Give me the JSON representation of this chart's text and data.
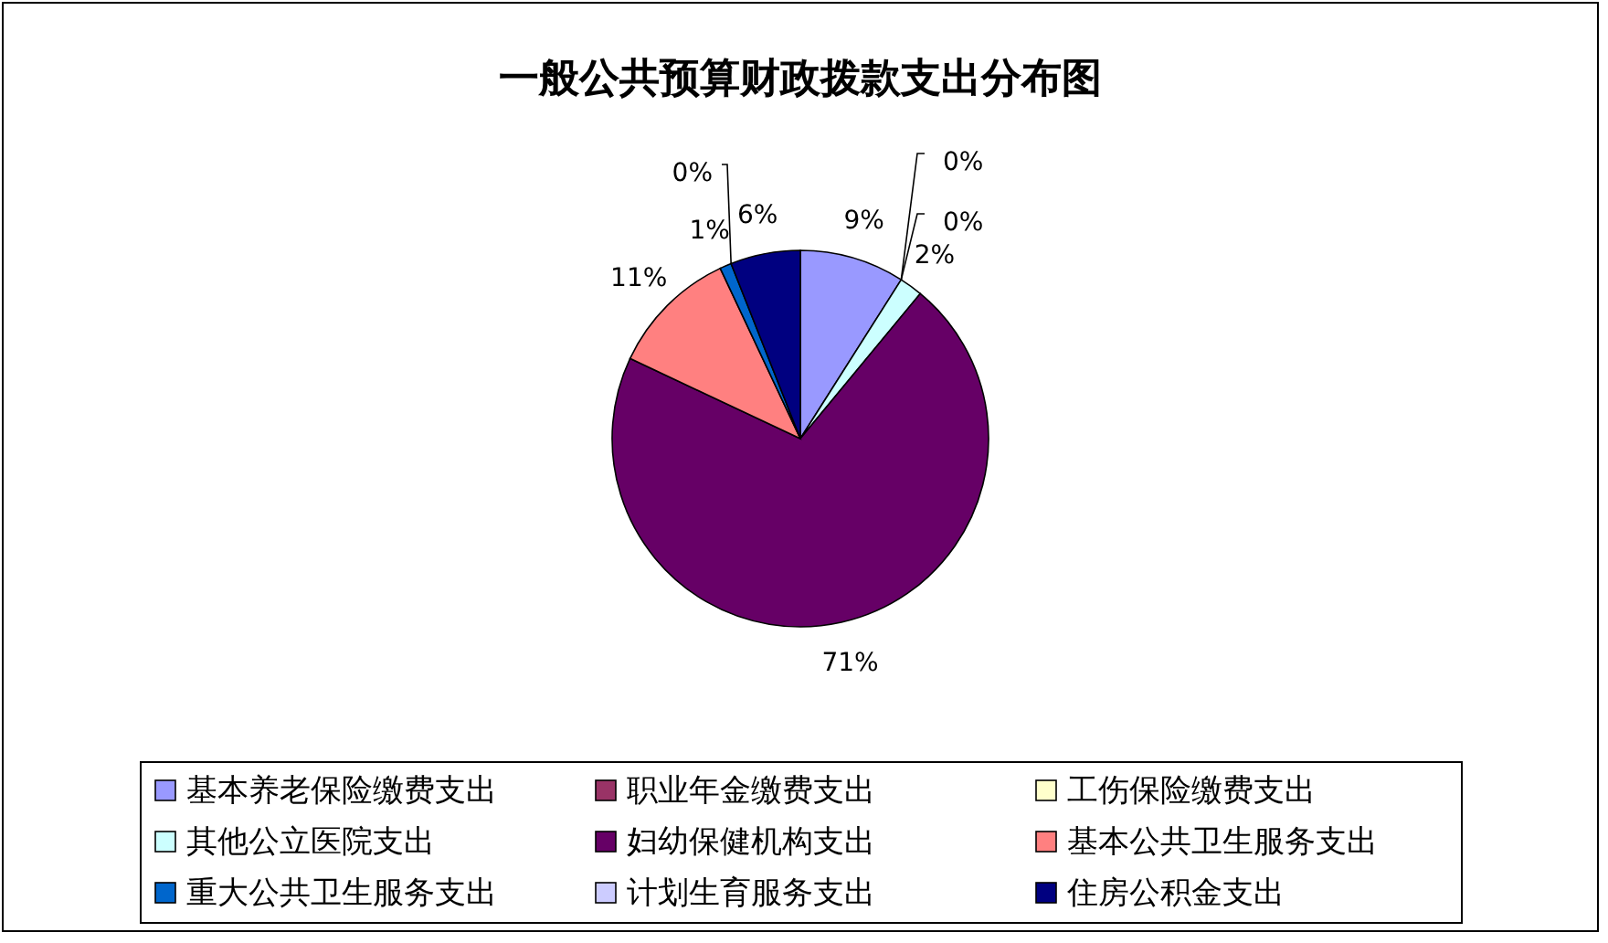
{
  "chart_data": {
    "type": "pie",
    "title": "一般公共预算财政拨款支出分布图",
    "categories": [
      "基本养老保险缴费支出",
      "职业年金缴费支出",
      "工伤保险缴费支出",
      "其他公立医院支出",
      "妇幼保健机构支出",
      "基本公共卫生服务支出",
      "重大公共卫生服务支出",
      "计划生育服务支出",
      "住房公积金支出"
    ],
    "values": [
      9,
      0,
      0,
      2,
      71,
      11,
      1,
      0,
      6
    ],
    "colors": [
      "#9999ff",
      "#993366",
      "#ffffcc",
      "#ccffff",
      "#660066",
      "#ff8080",
      "#0066cc",
      "#ccccff",
      "#000080"
    ],
    "value_labels": [
      "9%",
      "0%",
      "0%",
      "2%",
      "71%",
      "11%",
      "1%",
      "0%",
      "6%"
    ],
    "legend": "bottom"
  }
}
